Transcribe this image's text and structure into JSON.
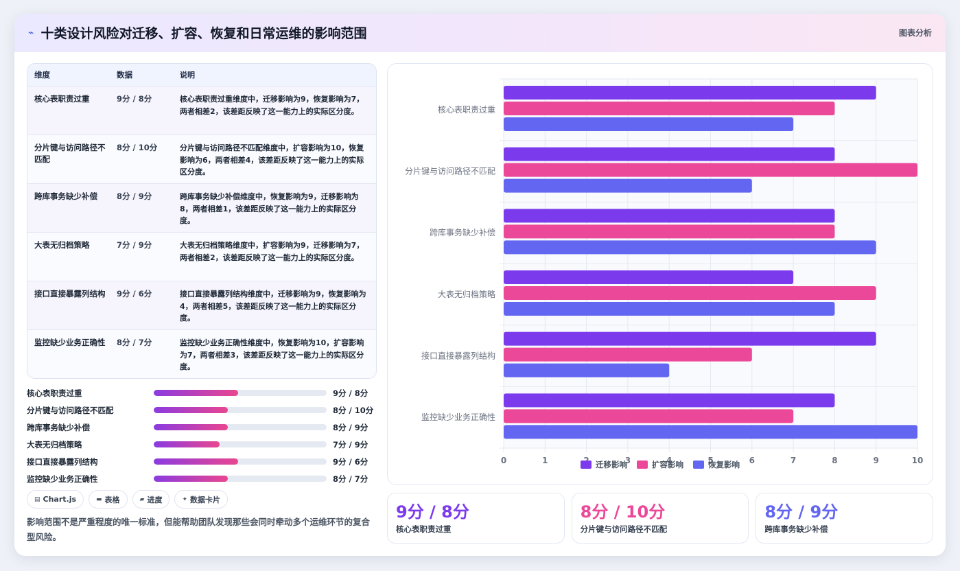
{
  "header": {
    "title": "十类设计风险对迁移、扩容、恢复和日常运维的影响范围",
    "tag": "图表分析"
  },
  "table": {
    "headers": [
      "维度",
      "数据",
      "说明"
    ],
    "rows": [
      {
        "name": "核心表职责过重",
        "value": "9分 / 8分",
        "desc": "核心表职责过重维度中，迁移影响为9，恢复影响为7，两者相差2，该差距反映了这一能力上的实际区分度。"
      },
      {
        "name": "分片键与访问路径不匹配",
        "value": "8分 / 10分",
        "desc": "分片键与访问路径不匹配维度中，扩容影响为10，恢复影响为6，两者相差4，该差距反映了这一能力上的实际区分度。"
      },
      {
        "name": "跨库事务缺少补偿",
        "value": "8分 / 9分",
        "desc": "跨库事务缺少补偿维度中，恢复影响为9，迁移影响为8，两者相差1，该差距反映了这一能力上的实际区分度。"
      },
      {
        "name": "大表无归档策略",
        "value": "7分 / 9分",
        "desc": "大表无归档策略维度中，扩容影响为9，迁移影响为7，两者相差2，该差距反映了这一能力上的实际区分度。"
      },
      {
        "name": "接口直接暴露列结构",
        "value": "9分 / 6分",
        "desc": "接口直接暴露列结构维度中，迁移影响为9，恢复影响为4，两者相差5，该差距反映了这一能力上的实际区分度。"
      },
      {
        "name": "监控缺少业务正确性",
        "value": "8分 / 7分",
        "desc": "监控缺少业务正确性维度中，恢复影响为10，扩容影响为7，两者相差3，该差距反映了这一能力上的实际区分度。"
      }
    ]
  },
  "progress": [
    {
      "name": "核心表职责过重",
      "value": "9分 / 8分",
      "fill": 0.49
    },
    {
      "name": "分片键与访问路径不匹配",
      "value": "8分 / 10分",
      "fill": 0.43
    },
    {
      "name": "跨库事务缺少补偿",
      "value": "8分 / 9分",
      "fill": 0.43
    },
    {
      "name": "大表无归档策略",
      "value": "7分 / 9分",
      "fill": 0.38
    },
    {
      "name": "接口直接暴露列结构",
      "value": "9分 / 6分",
      "fill": 0.49
    },
    {
      "name": "监控缺少业务正确性",
      "value": "8分 / 7分",
      "fill": 0.43
    }
  ],
  "chips": [
    {
      "icon": "chart-icon",
      "label": "Chart.js"
    },
    {
      "icon": "table-icon",
      "label": "表格"
    },
    {
      "icon": "progress-icon",
      "label": "进度"
    },
    {
      "icon": "card-icon",
      "label": "数据卡片"
    }
  ],
  "note": "影响范围不是严重程度的唯一标准，但能帮助团队发现那些会同时牵动多个运维环节的复合型风险。",
  "kpis": [
    {
      "value": "9分 / 8分",
      "label": "核心表职责过重",
      "color": "#7c3aed"
    },
    {
      "value": "8分 / 10分",
      "label": "分片键与访问路径不匹配",
      "color": "#ec4899"
    },
    {
      "value": "8分 / 9分",
      "label": "跨库事务缺少补偿",
      "color": "#6366f1"
    }
  ],
  "chart_data": {
    "type": "bar",
    "orientation": "horizontal",
    "categories": [
      "核心表职责过重",
      "分片键与访问路径不匹配",
      "跨库事务缺少补偿",
      "大表无归档策略",
      "接口直接暴露列结构",
      "监控缺少业务正确性"
    ],
    "series": [
      {
        "name": "迁移影响",
        "color": "#7c3aed",
        "values": [
          9,
          8,
          8,
          7,
          9,
          8
        ]
      },
      {
        "name": "扩容影响",
        "color": "#ec4899",
        "values": [
          8,
          10,
          8,
          9,
          6,
          7
        ]
      },
      {
        "name": "恢复影响",
        "color": "#6366f1",
        "values": [
          7,
          6,
          9,
          8,
          4,
          10
        ]
      }
    ],
    "xlim": [
      0,
      10
    ],
    "xticks": [
      "0",
      "1",
      "2",
      "3",
      "4",
      "5",
      "6",
      "7",
      "8",
      "9",
      "10"
    ],
    "grid": true,
    "legend": "bottom"
  }
}
